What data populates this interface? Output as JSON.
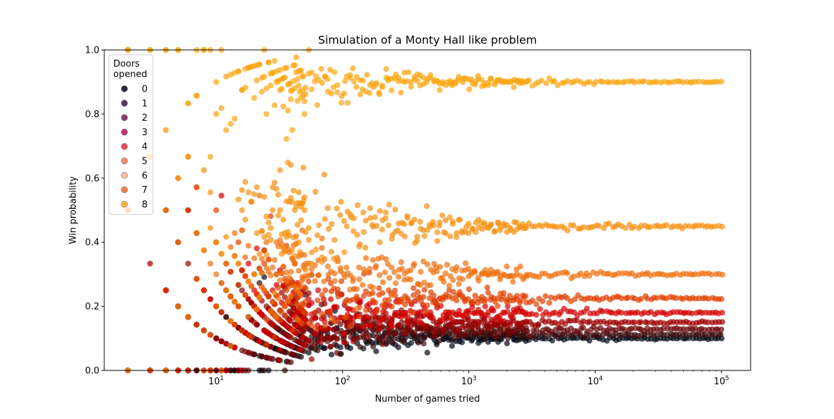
{
  "chart_data": {
    "type": "scatter",
    "title": "Simulation of a Monty Hall like problem",
    "xlabel": "Number of games tried",
    "ylabel": "Win probability",
    "x_scale": "log",
    "xlim": [
      1.3,
      170000
    ],
    "ylim": [
      0,
      1.0
    ],
    "x_ticks": [
      {
        "value": 10,
        "base": "10",
        "exp": "1"
      },
      {
        "value": 100,
        "base": "10",
        "exp": "2"
      },
      {
        "value": 1000,
        "base": "10",
        "exp": "3"
      },
      {
        "value": 10000,
        "base": "10",
        "exp": "4"
      },
      {
        "value": 100000,
        "base": "10",
        "exp": "5"
      }
    ],
    "y_ticks": [
      "0.0",
      "0.2",
      "0.4",
      "0.6",
      "0.8",
      "1.0"
    ],
    "grid": false,
    "legend": {
      "title_lines": [
        "Doors",
        "opened"
      ],
      "placement": "upper-left"
    },
    "point_alpha": 0.7,
    "series": [
      {
        "name": "0",
        "color": "#03051a",
        "win_rate": 0.1,
        "samples": [
          [
            2,
            0.0
          ],
          [
            10,
            0.0
          ],
          [
            20,
            0.05
          ],
          [
            50,
            0.06
          ],
          [
            100,
            0.08
          ],
          [
            300,
            0.09
          ],
          [
            1000,
            0.097
          ],
          [
            10000,
            0.1
          ],
          [
            100000,
            0.1
          ]
        ]
      },
      {
        "name": "1",
        "color": "#36193e",
        "win_rate": 0.1125,
        "samples": [
          [
            2,
            0.0
          ],
          [
            10,
            0.1
          ],
          [
            30,
            0.1
          ],
          [
            100,
            0.11
          ],
          [
            1000,
            0.112
          ],
          [
            10000,
            0.112
          ],
          [
            100000,
            0.1125
          ]
        ]
      },
      {
        "name": "2",
        "color": "#701f57",
        "win_rate": 0.1286,
        "samples": [
          [
            2,
            0.0
          ],
          [
            10,
            0.1
          ],
          [
            30,
            0.13
          ],
          [
            100,
            0.13
          ],
          [
            1000,
            0.128
          ],
          [
            10000,
            0.129
          ],
          [
            100000,
            0.1286
          ]
        ]
      },
      {
        "name": "3",
        "color": "#ad1759",
        "win_rate": 0.15,
        "samples": [
          [
            2,
            0.0
          ],
          [
            10,
            0.2
          ],
          [
            30,
            0.15
          ],
          [
            100,
            0.15
          ],
          [
            1000,
            0.15
          ],
          [
            10000,
            0.15
          ],
          [
            100000,
            0.15
          ]
        ]
      },
      {
        "name": "4",
        "color": "#e13342",
        "win_rate": 0.18,
        "samples": [
          [
            2,
            0.5
          ],
          [
            10,
            0.2
          ],
          [
            30,
            0.18
          ],
          [
            100,
            0.18
          ],
          [
            1000,
            0.18
          ],
          [
            10000,
            0.18
          ],
          [
            100000,
            0.18
          ]
        ]
      },
      {
        "name": "5",
        "color": "#f37651",
        "win_rate": 0.225,
        "samples": [
          [
            2,
            0.5
          ],
          [
            10,
            0.2
          ],
          [
            30,
            0.23
          ],
          [
            100,
            0.22
          ],
          [
            1000,
            0.225
          ],
          [
            10000,
            0.225
          ],
          [
            100000,
            0.225
          ]
        ]
      },
      {
        "name": "6",
        "color": "#f6b48f",
        "win_rate": 0.3,
        "samples": [
          [
            2,
            0.5
          ],
          [
            10,
            0.3
          ],
          [
            30,
            0.3
          ],
          [
            100,
            0.3
          ],
          [
            1000,
            0.3
          ],
          [
            10000,
            0.3
          ],
          [
            100000,
            0.3
          ]
        ]
      },
      {
        "name": "7",
        "color": "#e8702a",
        "win_rate": 0.45,
        "samples": [
          [
            2,
            0.5
          ],
          [
            10,
            0.4
          ],
          [
            30,
            0.45
          ],
          [
            100,
            0.45
          ],
          [
            1000,
            0.45
          ],
          [
            10000,
            0.45
          ],
          [
            100000,
            0.45
          ]
        ]
      },
      {
        "name": "8",
        "color": "#f3a42a",
        "win_rate": 0.9,
        "samples": [
          [
            2,
            1.0
          ],
          [
            10,
            0.9
          ],
          [
            30,
            0.9
          ],
          [
            100,
            0.9
          ],
          [
            1000,
            0.9
          ],
          [
            10000,
            0.9
          ],
          [
            100000,
            0.9
          ]
        ]
      }
    ],
    "observed_band_colors": [
      "#000818",
      "#3a0a0a",
      "#6a0808",
      "#a00000",
      "#d40000",
      "#e04000",
      "#f07010",
      "#f79010",
      "#fba510"
    ]
  }
}
